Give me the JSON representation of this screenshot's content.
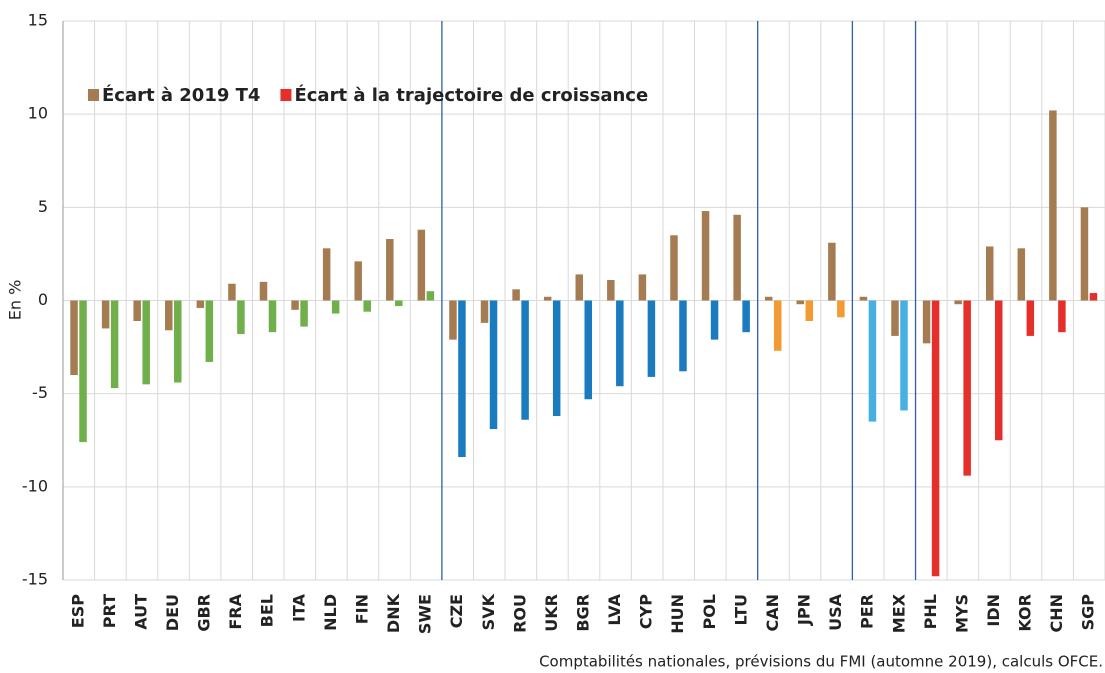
{
  "chart_data": {
    "type": "bar",
    "y_label": "En %",
    "source": "Comptabilités nationales, prévisions du FMI (automne 2019), calculs OFCE.",
    "categories": [
      "ESP",
      "PRT",
      "AUT",
      "DEU",
      "GBR",
      "FRA",
      "BEL",
      "ITA",
      "NLD",
      "FIN",
      "DNK",
      "SWE",
      "CZE",
      "SVK",
      "ROU",
      "UKR",
      "BGR",
      "LVA",
      "CYP",
      "HUN",
      "POL",
      "LTU",
      "CAN",
      "JPN",
      "USA",
      "PER",
      "MEX",
      "PHL",
      "MYS",
      "IDN",
      "KOR",
      "CHN",
      "SGP"
    ],
    "series": [
      {
        "name": "Écart à 2019 T4",
        "color": "#a57c52",
        "values": [
          -4.0,
          -1.5,
          -1.1,
          -1.6,
          -0.4,
          0.9,
          1.0,
          -0.5,
          2.8,
          2.1,
          3.3,
          3.8,
          -2.1,
          -1.2,
          0.6,
          0.2,
          1.4,
          1.1,
          1.4,
          3.5,
          4.8,
          4.6,
          0.2,
          -0.2,
          3.1,
          0.2,
          -1.9,
          -2.3,
          -0.2,
          2.9,
          2.8,
          10.2,
          5.0
        ]
      },
      {
        "name": "Écart à la trajectoire de croissance",
        "color": "#e52f2b",
        "colors": [
          "#70b04a",
          "#70b04a",
          "#70b04a",
          "#70b04a",
          "#70b04a",
          "#70b04a",
          "#70b04a",
          "#70b04a",
          "#70b04a",
          "#70b04a",
          "#70b04a",
          "#70b04a",
          "#1a7bbf",
          "#1a7bbf",
          "#1a7bbf",
          "#1a7bbf",
          "#1a7bbf",
          "#1a7bbf",
          "#1a7bbf",
          "#1a7bbf",
          "#1a7bbf",
          "#1a7bbf",
          "#f39a32",
          "#f39a32",
          "#f39a32",
          "#45b0e1",
          "#45b0e1",
          "#e52f2b",
          "#e52f2b",
          "#e52f2b",
          "#e52f2b",
          "#e52f2b",
          "#e52f2b"
        ],
        "values": [
          -7.6,
          -4.7,
          -4.5,
          -4.4,
          -3.3,
          -1.8,
          -1.7,
          -1.4,
          -0.7,
          -0.6,
          -0.3,
          0.5,
          -8.4,
          -6.9,
          -6.4,
          -6.2,
          -5.3,
          -4.6,
          -4.1,
          -3.8,
          -2.1,
          -1.7,
          -2.7,
          -1.1,
          -0.9,
          -6.5,
          -5.9,
          -14.8,
          -9.4,
          -7.5,
          -1.9,
          -1.7,
          0.4
        ]
      }
    ],
    "ylim": [
      -15,
      15
    ],
    "yticks": [
      -15,
      -10,
      -5,
      0,
      5,
      10,
      15
    ],
    "grid": true
  }
}
